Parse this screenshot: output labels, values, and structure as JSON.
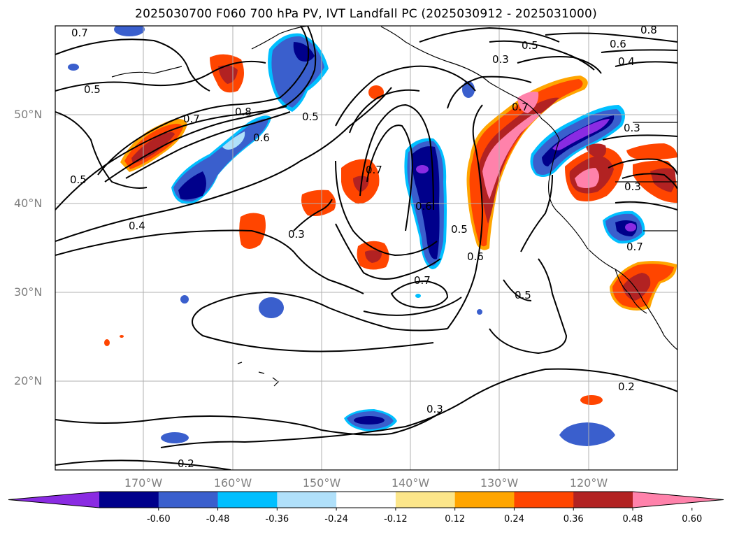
{
  "title": "2025030700 F060 700 hPa PV, IVT Landfall PC (2025030912 - 2025031000)",
  "axes": {
    "latitude_labels": [
      "50°N",
      "40°N",
      "30°N",
      "20°N"
    ],
    "longitude_labels": [
      "170°W",
      "160°W",
      "150°W",
      "140°W",
      "130°W",
      "120°W"
    ]
  },
  "colorbar": {
    "levels": [
      "-0.60",
      "-0.48",
      "-0.36",
      "-0.24",
      "-0.12",
      "0.12",
      "0.24",
      "0.36",
      "0.48",
      "0.60"
    ],
    "colors": [
      "#8a2be2",
      "#00008b",
      "#3a5fcd",
      "#00bfff",
      "#b0e0fa",
      "#ffffff",
      "#fce68a",
      "#ffa500",
      "#ff4500",
      "#b22222",
      "#ff82ab"
    ],
    "extend": "both"
  },
  "contour_labels": [
    "0.7",
    "0.5",
    "0.7",
    "0.8",
    "0.6",
    "0.5",
    "0.5",
    "0.4",
    "0.3",
    "0.7",
    "0.6",
    "0.5",
    "0.6",
    "0.7",
    "0.3",
    "0.5",
    "0.8",
    "0.7",
    "0.6",
    "0.4",
    "0.3",
    "0.3",
    "0.7",
    "0.5",
    "0.2",
    "0.3",
    "0.2"
  ]
}
